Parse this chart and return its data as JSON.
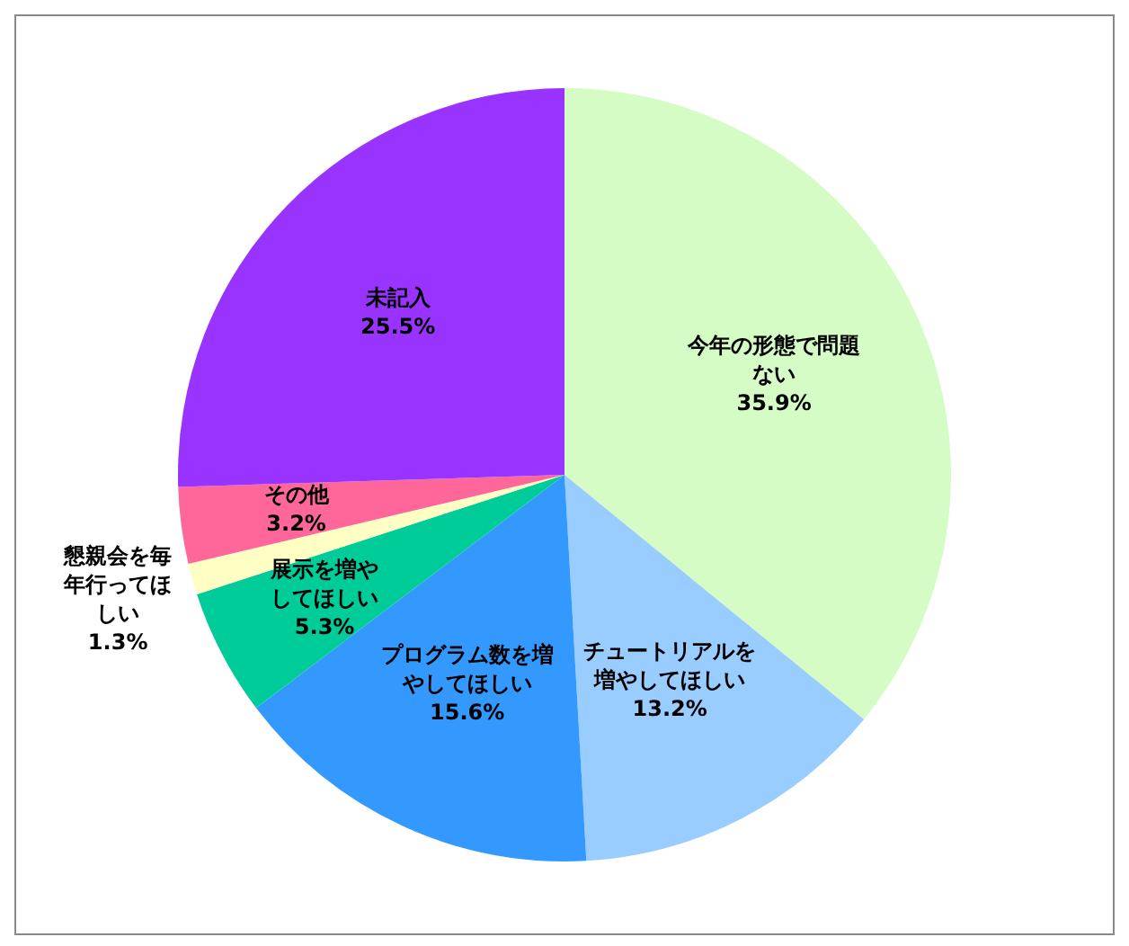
{
  "chart_data": {
    "type": "pie",
    "categories": [
      "今年の形態で問題ない",
      "チュートリアルを増やしてほしい",
      "プログラム数を増やしてほしい",
      "展示を増やしてほしい",
      "懇親会を毎年行ってほしい",
      "その他",
      "未記入"
    ],
    "values": [
      35.9,
      13.2,
      15.6,
      5.3,
      1.3,
      3.2,
      25.5
    ],
    "value_labels": [
      "35.9%",
      "13.2%",
      "15.6%",
      "5.3%",
      "1.3%",
      "3.2%",
      "25.5%"
    ],
    "colors": [
      "#d4fcc4",
      "#99ccff",
      "#3399ff",
      "#00cc99",
      "#ffffc4",
      "#ff6699",
      "#9933ff"
    ],
    "legend": false
  }
}
